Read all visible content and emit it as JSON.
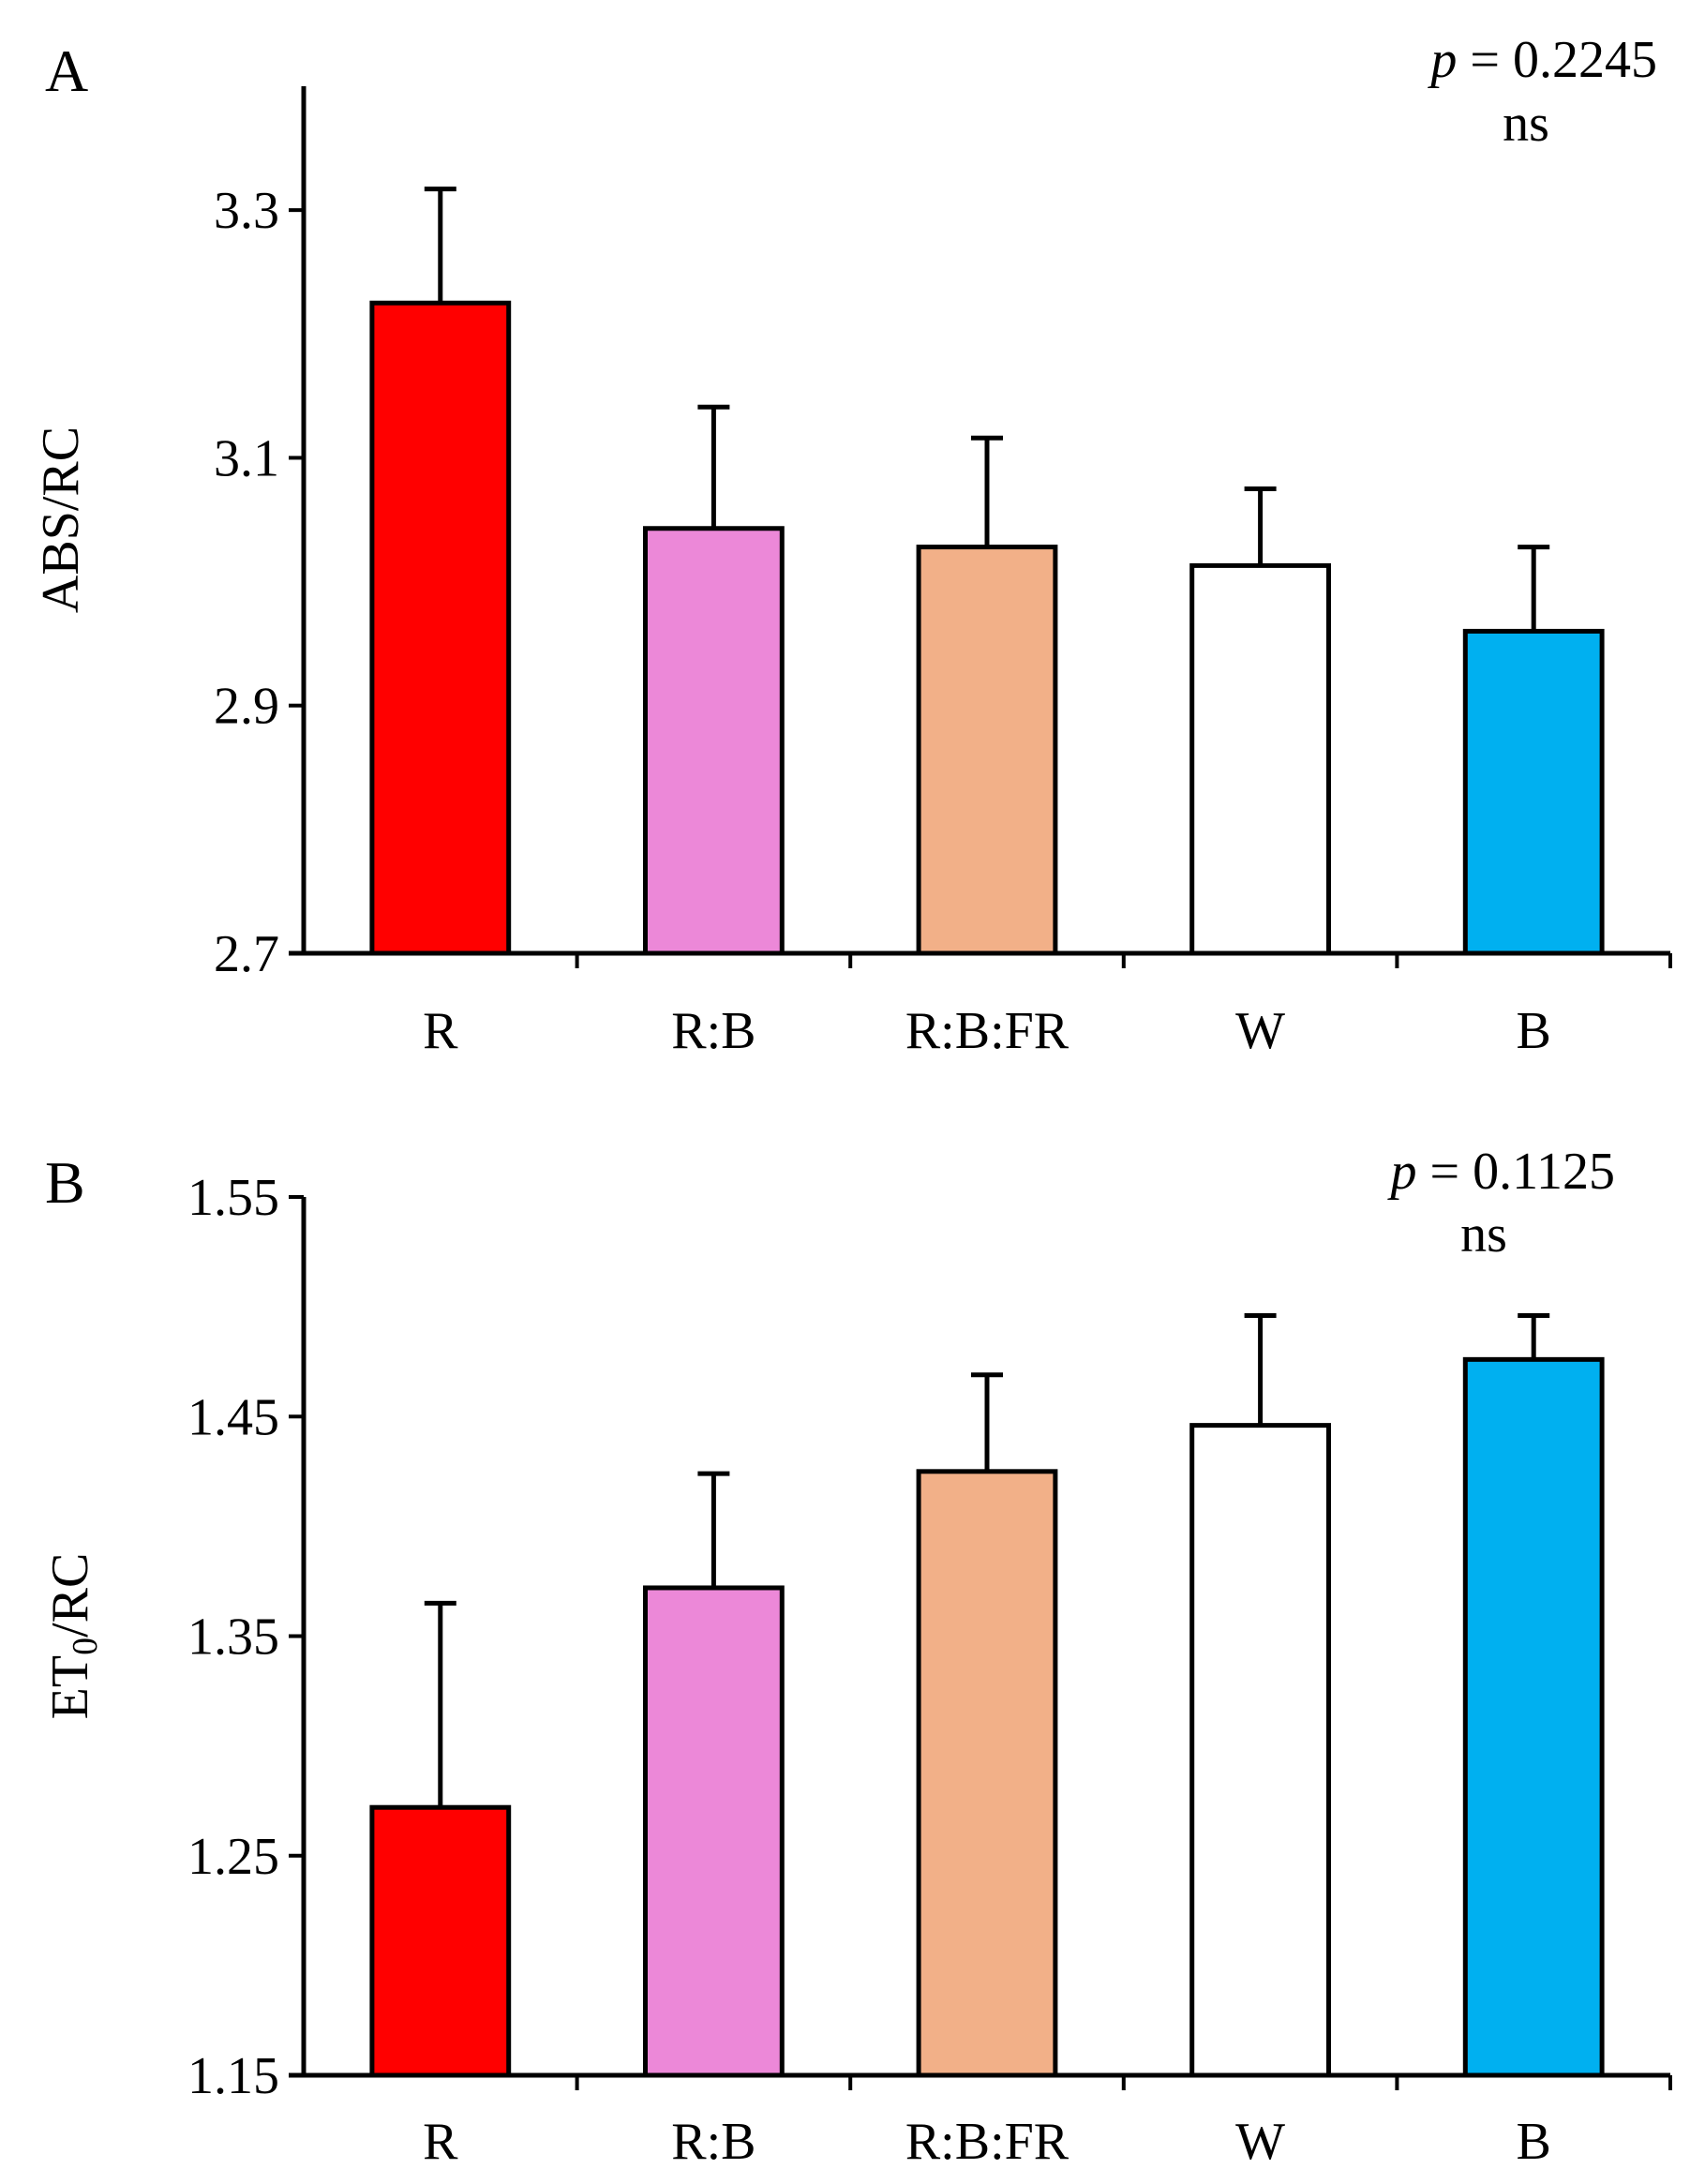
{
  "figure": {
    "colors": {
      "R": "#ff0000",
      "R:B": "#ec88d8",
      "R:B:FR": "#f2b088",
      "W": "#ffffff",
      "B": "#00b0f0"
    }
  },
  "chart_data": [
    {
      "panel_label": "A",
      "type": "bar",
      "ylabel": "ABS/RC",
      "ylabel_main": "ABS/RC",
      "ylabel_subscript": "",
      "ylabel_tail": "",
      "categories": [
        "R",
        "R:B",
        "R:B:FR",
        "W",
        "B"
      ],
      "values": [
        3.225,
        3.043,
        3.028,
        3.013,
        2.96
      ],
      "errors": [
        0.092,
        0.098,
        0.088,
        0.062,
        0.068
      ],
      "ylim": [
        2.7,
        3.4
      ],
      "yticks": [
        2.7,
        2.9,
        3.1,
        3.3
      ],
      "ytick_labels": [
        "2.7",
        "2.9",
        "3.1",
        "3.3"
      ],
      "annotation": {
        "p_symbol": "p",
        "p_value": "= 0.2245",
        "significance": "ns"
      }
    },
    {
      "panel_label": "B",
      "type": "bar",
      "ylabel": "ET0/RC",
      "ylabel_main": "ET",
      "ylabel_subscript": "0",
      "ylabel_tail": "/RC",
      "categories": [
        "R",
        "R:B",
        "R:B:FR",
        "W",
        "B"
      ],
      "values": [
        1.272,
        1.372,
        1.425,
        1.446,
        1.476
      ],
      "errors": [
        0.093,
        0.052,
        0.044,
        0.05,
        0.02
      ],
      "ylim": [
        1.15,
        1.55
      ],
      "yticks": [
        1.15,
        1.25,
        1.35,
        1.45,
        1.55
      ],
      "ytick_labels": [
        "1.15",
        "1.25",
        "1.35",
        "1.45",
        "1.55"
      ],
      "annotation": {
        "p_symbol": "p",
        "p_value": "= 0.1125",
        "significance": "ns"
      }
    }
  ]
}
